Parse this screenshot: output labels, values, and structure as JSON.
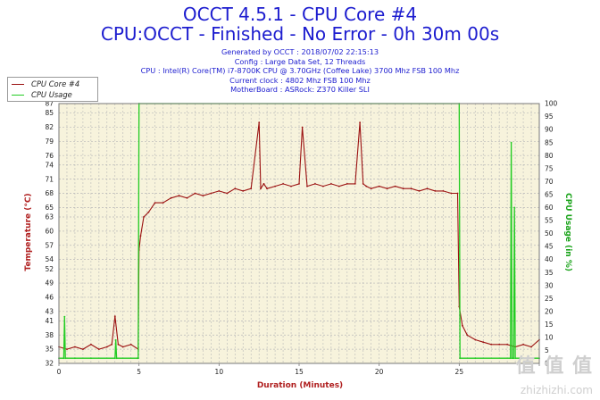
{
  "header": {
    "title_line1": "OCCT 4.5.1 - CPU Core #4",
    "title_line2": "CPU:OCCT - Finished - No Error - 0h 30m 00s",
    "info": [
      "Generated by OCCT : 2018/07/02 22:15:13",
      "Config : Large Data Set, 12 Threads",
      "CPU : Intel(R) Core(TM) i7-8700K CPU @ 3.70GHz (Coffee Lake) 3700 Mhz FSB 100 Mhz",
      "Current clock : 4802 Mhz FSB 100 Mhz",
      "MotherBoard : ASRock: Z370 Killer SLI"
    ]
  },
  "watermark": {
    "logo": "值 值 值",
    "site": "zhizhizhi.com"
  },
  "colors": {
    "title": "#1c1ccf",
    "temp_series": "#9b1111",
    "usage_series": "#22cc22",
    "plot_bg": "#f7f3dc",
    "grid": "#b8b8b8",
    "left_axis_title": "#b02020",
    "right_axis_title": "#1aa31a"
  },
  "chart_data": {
    "type": "line",
    "xlabel": "Duration (Minutes)",
    "ylabel": "Temperature (°C)",
    "y2label": "CPU Usage (in %)",
    "xlim": [
      0,
      30
    ],
    "ylim": [
      32,
      87
    ],
    "y2lim": [
      0,
      100
    ],
    "x_ticks": [
      0,
      5,
      10,
      15,
      20,
      25,
      30
    ],
    "x_tick_labels": [
      "0",
      "5",
      "10",
      "15",
      "20",
      "25",
      ""
    ],
    "y_ticks": [
      32,
      35,
      38,
      41,
      43,
      46,
      49,
      52,
      54,
      57,
      60,
      63,
      65,
      68,
      71,
      74,
      76,
      79,
      82,
      85,
      87
    ],
    "y2_ticks": [
      0,
      5,
      10,
      15,
      20,
      25,
      30,
      35,
      40,
      45,
      50,
      55,
      60,
      65,
      70,
      75,
      80,
      85,
      90,
      95,
      100
    ],
    "grid": true,
    "legend_position": "top-left",
    "series": [
      {
        "name": "CPU Core #4",
        "axis": "left",
        "x": [
          0,
          0.5,
          1,
          1.5,
          2,
          2.5,
          3,
          3.3,
          3.5,
          3.7,
          4,
          4.5,
          4.95,
          5.0,
          5.1,
          5.3,
          5.6,
          6,
          6.5,
          7,
          7.5,
          8,
          8.5,
          9,
          9.5,
          10,
          10.5,
          11,
          11.5,
          12,
          12.5,
          12.6,
          12.8,
          13,
          13.5,
          14,
          14.5,
          15,
          15.2,
          15.5,
          16,
          16.5,
          17,
          17.5,
          18,
          18.5,
          18.8,
          19,
          19.2,
          19.5,
          20,
          20.5,
          21,
          21.5,
          22,
          22.5,
          23,
          23.5,
          24,
          24.5,
          24.9,
          25.0,
          25.2,
          25.5,
          26,
          26.5,
          27,
          27.5,
          28,
          28.5,
          29,
          29.5,
          30
        ],
        "y": [
          35.5,
          35,
          35.5,
          35,
          36,
          35,
          35.5,
          36,
          42,
          36,
          35.5,
          36,
          35,
          56,
          59,
          63,
          64,
          66,
          66,
          67,
          67.5,
          67,
          68,
          67.5,
          68,
          68.5,
          68,
          69,
          68.5,
          69,
          83,
          69,
          70,
          69,
          69.5,
          70,
          69.5,
          70,
          82,
          69.5,
          70,
          69.5,
          70,
          69.5,
          70,
          70,
          83,
          70,
          69.5,
          69,
          69.5,
          69,
          69.5,
          69,
          69,
          68.5,
          69,
          68.5,
          68.5,
          68,
          68,
          44,
          40,
          38,
          37,
          36.5,
          36,
          36,
          36,
          35.5,
          36,
          35.5,
          37
        ]
      },
      {
        "name": "CPU Usage",
        "axis": "right",
        "x": [
          0,
          0.3,
          0.35,
          0.4,
          1,
          2,
          3.5,
          3.55,
          3.6,
          4.9,
          4.95,
          5.0,
          25.0,
          25.05,
          26,
          28.2,
          28.25,
          28.3,
          28.4,
          28.45,
          28.5,
          29,
          30
        ],
        "y": [
          2,
          2,
          18,
          2,
          2,
          2,
          2,
          9,
          2,
          2,
          2,
          100,
          100,
          2,
          2,
          2,
          85,
          2,
          2,
          60,
          2,
          2,
          2
        ]
      }
    ]
  }
}
